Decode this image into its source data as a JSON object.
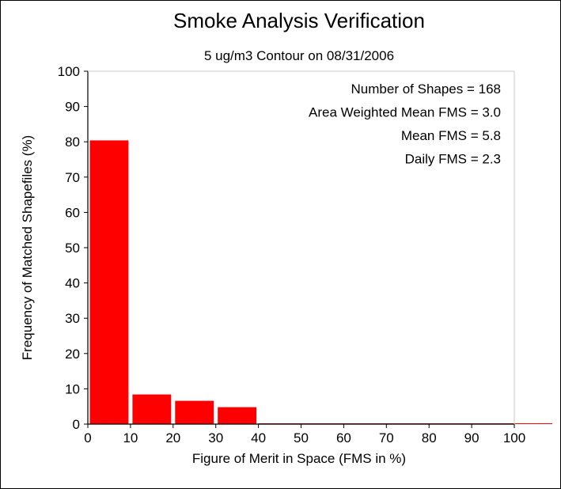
{
  "chart_data": {
    "type": "bar",
    "title": "Smoke Analysis Verification",
    "subtitle": "5 ug/m3 Contour on 08/31/2006",
    "xlabel": "Figure of Merit in Space (FMS in %)",
    "ylabel": "Frequency of Matched Shapefiles (%)",
    "bin_edges": [
      0,
      10,
      20,
      30,
      40,
      50,
      60,
      70,
      80,
      90,
      100
    ],
    "categories": [
      "0-10",
      "10-20",
      "20-30",
      "30-40",
      "40-50",
      "50-60",
      "60-70",
      "70-80",
      "80-90",
      "90-100"
    ],
    "values": [
      80.4,
      8.4,
      6.6,
      4.8,
      0,
      0,
      0,
      0,
      0,
      0
    ],
    "xlim": [
      0,
      100
    ],
    "ylim": [
      0,
      100
    ],
    "xticks": [
      "0",
      "10",
      "20",
      "30",
      "40",
      "50",
      "60",
      "70",
      "80",
      "90",
      "100"
    ],
    "yticks": [
      "0",
      "10",
      "20",
      "30",
      "40",
      "50",
      "60",
      "70",
      "80",
      "90",
      "100"
    ],
    "annotations": [
      "Number of Shapes = 168",
      "Area Weighted Mean FMS = 3.0",
      "Mean FMS = 5.8",
      "Daily FMS = 2.3"
    ],
    "grid": false,
    "bar_color": "#ff0000"
  }
}
